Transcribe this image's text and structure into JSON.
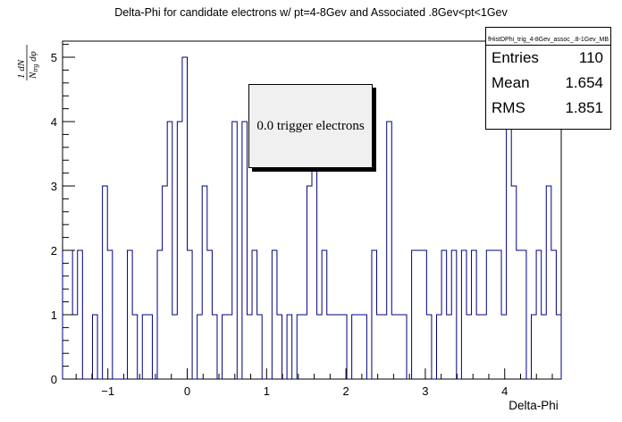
{
  "chart_data": {
    "type": "bar",
    "style": "step-histogram",
    "title": "Delta-Phi for candidate electrons w/ pt=4-8Gev and Associated .8Gev<pt<1Gev",
    "xlabel": "Delta-Phi",
    "ylabel": "1/N_trg dN/dφ",
    "xlim": [
      -1.5708,
      4.7124
    ],
    "ylim": [
      0,
      5.25
    ],
    "xticks": [
      "−1",
      "0",
      "1",
      "2",
      "3",
      "4"
    ],
    "xtick_values": [
      -1,
      0,
      1,
      2,
      3,
      4
    ],
    "yticks": [
      "0",
      "1",
      "2",
      "3",
      "4",
      "5"
    ],
    "bins": 100,
    "values": [
      2,
      2,
      1,
      2,
      0,
      0,
      1,
      0,
      3,
      2,
      0,
      0,
      0,
      2,
      1,
      0,
      1,
      1,
      0,
      2,
      3,
      4,
      1,
      4,
      5,
      2,
      0,
      1,
      3,
      2,
      1,
      0,
      1,
      1,
      4,
      0,
      4,
      1,
      2,
      1,
      0,
      0,
      2,
      1,
      0,
      1,
      0,
      1,
      1,
      3,
      4,
      1,
      2,
      1,
      1,
      1,
      1,
      0,
      1,
      1,
      1,
      0,
      2,
      1,
      1,
      4,
      1,
      1,
      1,
      0,
      2,
      2,
      2,
      1,
      0,
      1,
      2,
      1,
      2,
      0,
      2,
      1,
      2,
      1,
      1,
      2,
      2,
      2,
      1,
      4,
      3,
      2,
      2,
      0,
      1,
      2,
      1,
      3,
      2,
      1
    ],
    "line_color": "#000080",
    "stats": {
      "title": "fHistDPhi_trig_4-8Gev_assoc_.8-1Gev_MB",
      "entries_label": "Entries",
      "entries": "110",
      "mean_label": "Mean",
      "mean": "1.654",
      "rms_label": "RMS",
      "rms": "1.851"
    },
    "annotation": "0.0 trigger electrons"
  }
}
